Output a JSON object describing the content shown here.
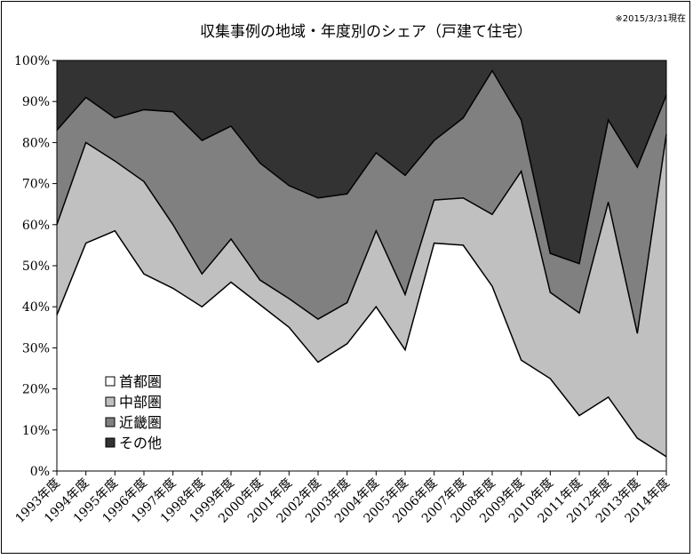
{
  "chart_data": {
    "type": "area",
    "stacked": true,
    "percent": true,
    "title": "収集事例の地域・年度別のシェア（戸建て住宅）",
    "note": "※2015/3/31現在",
    "categories": [
      "1993年度",
      "1994年度",
      "1995年度",
      "1996年度",
      "1997年度",
      "1998年度",
      "1999年度",
      "2000年度",
      "2001年度",
      "2002年度",
      "2003年度",
      "2004年度",
      "2005年度",
      "2006年度",
      "2007年度",
      "2008年度",
      "2009年度",
      "2010年度",
      "2011年度",
      "2012年度",
      "2013年度",
      "2014年度"
    ],
    "y_ticks": [
      "0%",
      "10%",
      "20%",
      "30%",
      "40%",
      "50%",
      "60%",
      "70%",
      "80%",
      "90%",
      "100%"
    ],
    "ylim": [
      0,
      100
    ],
    "legend_position": "bottom-left",
    "series": [
      {
        "name": "首都圏",
        "color": "#ffffff",
        "values": [
          38,
          55.5,
          58.5,
          48,
          44.5,
          40,
          46,
          40.5,
          35,
          26.5,
          31,
          40,
          29.5,
          55.5,
          55,
          45,
          27,
          22.5,
          13.5,
          18,
          8,
          3.5
        ]
      },
      {
        "name": "中部圏",
        "color": "#c0c0c0",
        "values": [
          22,
          24.5,
          17,
          22.5,
          15.5,
          8,
          10.5,
          6,
          7,
          10.5,
          10,
          18.5,
          13.5,
          10.5,
          11.5,
          17.5,
          46,
          21,
          25,
          47.5,
          25.5,
          78.5
        ]
      },
      {
        "name": "近畿圏",
        "color": "#808080",
        "values": [
          23,
          11,
          10.5,
          17.5,
          27.5,
          32.5,
          27.5,
          28.5,
          27.5,
          29.5,
          26.5,
          19,
          29,
          14.5,
          19.5,
          35,
          12.5,
          9.5,
          12,
          20,
          40.5,
          9.5
        ]
      },
      {
        "name": "その他",
        "color": "#333333",
        "values": [
          17,
          9,
          14,
          12,
          12.5,
          19.5,
          16,
          25,
          30.5,
          33.5,
          32.5,
          22.5,
          28,
          19.5,
          14,
          2.5,
          14.5,
          47,
          49.5,
          14.5,
          26,
          8.5
        ]
      }
    ]
  }
}
